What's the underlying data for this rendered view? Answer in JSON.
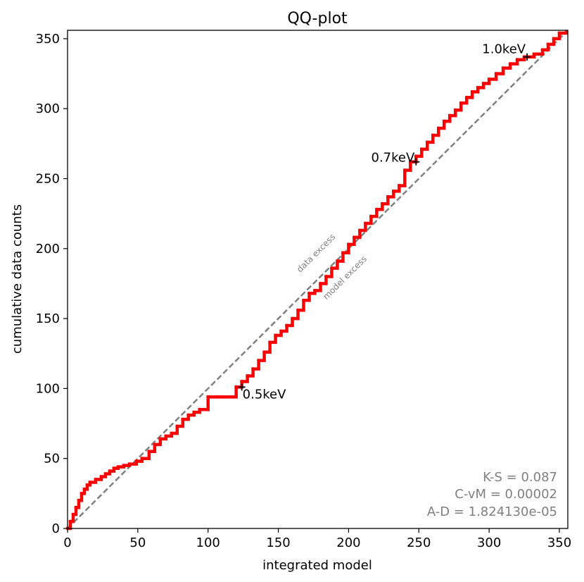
{
  "chart_data": {
    "type": "line",
    "title": "QQ-plot",
    "xlabel": "integrated model",
    "ylabel": "cumulative data counts",
    "xlim": [
      0,
      356
    ],
    "ylim": [
      0,
      356
    ],
    "grid": false,
    "x_ticks": [
      0,
      50,
      100,
      150,
      200,
      250,
      300,
      350
    ],
    "y_ticks": [
      0,
      50,
      100,
      150,
      200,
      250,
      300,
      350
    ],
    "x_tick_labels": [
      "0",
      "50",
      "100",
      "150",
      "200",
      "250",
      "300",
      "350"
    ],
    "y_tick_labels": [
      "0",
      "50",
      "100",
      "150",
      "200",
      "250",
      "300",
      "350"
    ],
    "series": [
      {
        "color": "#ff0000",
        "style": "steps",
        "x": [
          0,
          2,
          4,
          6,
          8,
          10,
          12,
          14,
          16,
          20,
          24,
          27,
          30,
          33,
          36,
          40,
          44,
          49,
          53,
          58,
          62,
          66,
          70,
          74,
          78,
          82,
          86,
          90,
          94,
          100,
          106,
          120,
          124,
          128,
          132,
          136,
          140,
          144,
          148,
          152,
          156,
          160,
          164,
          168,
          172,
          176,
          180,
          184,
          188,
          192,
          196,
          200,
          204,
          208,
          212,
          216,
          220,
          224,
          228,
          232,
          236,
          240,
          244,
          248,
          252,
          256,
          260,
          264,
          268,
          272,
          276,
          280,
          284,
          288,
          292,
          296,
          300,
          305,
          310,
          315,
          320,
          325,
          332,
          338,
          342,
          346,
          350,
          355
        ],
        "y": [
          0,
          5,
          10,
          15,
          20,
          25,
          28,
          31,
          33,
          35,
          37,
          39,
          41,
          43,
          44,
          45,
          46,
          48,
          50,
          55,
          60,
          64,
          66,
          68,
          73,
          78,
          81,
          83,
          85,
          94,
          94,
          101,
          105,
          109,
          114,
          120,
          126,
          133,
          138,
          141,
          145,
          150,
          156,
          163,
          168,
          170,
          175,
          180,
          186,
          191,
          197,
          203,
          208,
          213,
          218,
          223,
          228,
          232,
          237,
          241,
          245,
          256,
          262,
          266,
          271,
          276,
          281,
          286,
          291,
          295,
          299,
          304,
          308,
          312,
          315,
          318,
          321,
          325,
          329,
          332,
          335,
          337,
          339,
          342,
          346,
          350,
          354,
          355
        ]
      },
      {
        "name": "",
        "color": "#808080",
        "style": "dashed",
        "x": [
          0,
          356
        ],
        "y": [
          0,
          356
        ]
      }
    ],
    "annotations": [
      {
        "text": "0.5keV",
        "x": 124,
        "y": 101,
        "anchor": "start",
        "dy": 16
      },
      {
        "text": "0.7keV",
        "x": 248,
        "y": 262,
        "anchor": "end",
        "dy": 0
      },
      {
        "text": "1.0keV",
        "x": 327,
        "y": 337,
        "anchor": "end",
        "dy": -5
      }
    ],
    "region_labels": [
      "data excess",
      "model excess"
    ],
    "stats": [
      "K-S = 0.087",
      "C-vM = 0.00002",
      "A-D = 1.824130e-05"
    ]
  }
}
